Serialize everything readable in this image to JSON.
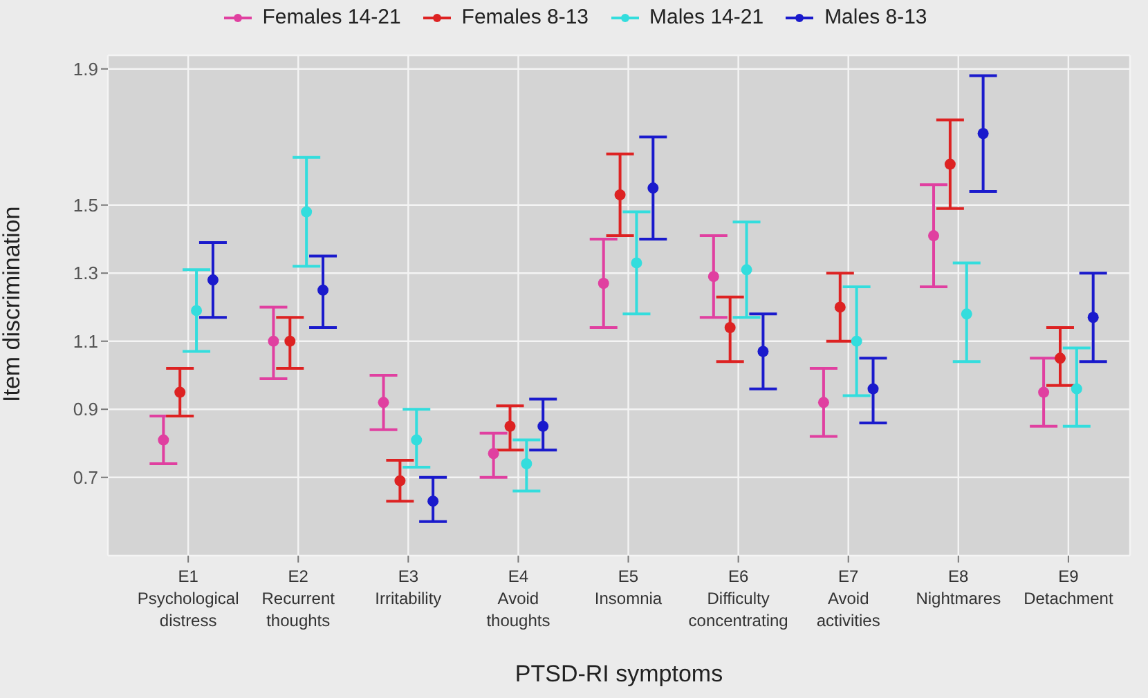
{
  "chart_data": {
    "type": "scatter",
    "xlabel": "PTSD-RI symptoms",
    "ylabel": "Item discrimination",
    "categories": [
      "E1 Psychological distress",
      "E2 Recurrent thoughts",
      "E3 Irritability",
      "E4 Avoid thoughts",
      "E5 Insomnia",
      "E6 Difficulty concentrating",
      "E7 Avoid activities",
      "E8 Nightmares",
      "E9 Detachment"
    ],
    "series": [
      {
        "name": "Females 14-21",
        "color": "#e040a0",
        "values": [
          0.81,
          1.1,
          0.92,
          0.77,
          1.27,
          1.29,
          0.92,
          1.41,
          0.95
        ],
        "errors": [
          [
            0.74,
            0.88
          ],
          [
            0.99,
            1.2
          ],
          [
            0.84,
            1.0
          ],
          [
            0.7,
            0.83
          ],
          [
            1.14,
            1.4
          ],
          [
            1.17,
            1.41
          ],
          [
            0.82,
            1.02
          ],
          [
            1.26,
            1.56
          ],
          [
            0.85,
            1.05
          ]
        ]
      },
      {
        "name": "Females 8-13",
        "color": "#dd2222",
        "values": [
          0.95,
          1.1,
          0.69,
          0.85,
          1.53,
          1.14,
          1.2,
          1.62,
          1.05
        ],
        "errors": [
          [
            0.88,
            1.02
          ],
          [
            1.02,
            1.17
          ],
          [
            0.63,
            0.75
          ],
          [
            0.78,
            0.91
          ],
          [
            1.41,
            1.65
          ],
          [
            1.04,
            1.23
          ],
          [
            1.1,
            1.3
          ],
          [
            1.49,
            1.75
          ],
          [
            0.97,
            1.14
          ]
        ]
      },
      {
        "name": "Males 14-21",
        "color": "#33dddd",
        "values": [
          1.19,
          1.48,
          0.81,
          0.74,
          1.33,
          1.31,
          1.1,
          1.18,
          0.96
        ],
        "errors": [
          [
            1.07,
            1.31
          ],
          [
            1.32,
            1.64
          ],
          [
            0.73,
            0.9
          ],
          [
            0.66,
            0.81
          ],
          [
            1.18,
            1.48
          ],
          [
            1.17,
            1.45
          ],
          [
            0.94,
            1.26
          ],
          [
            1.04,
            1.33
          ],
          [
            0.85,
            1.08
          ]
        ]
      },
      {
        "name": "Males 8-13",
        "color": "#1a1acc",
        "values": [
          1.28,
          1.25,
          0.63,
          0.85,
          1.55,
          1.07,
          0.96,
          1.71,
          1.17
        ],
        "errors": [
          [
            1.17,
            1.39
          ],
          [
            1.14,
            1.35
          ],
          [
            0.57,
            0.7
          ],
          [
            0.78,
            0.93
          ],
          [
            1.4,
            1.7
          ],
          [
            0.96,
            1.18
          ],
          [
            0.86,
            1.05
          ],
          [
            1.54,
            1.88
          ],
          [
            1.04,
            1.3
          ]
        ]
      }
    ],
    "ylim": [
      0.47,
      1.94
    ],
    "yticks": [
      0.7,
      0.9,
      1.1,
      1.3,
      1.5,
      1.9
    ],
    "grid": true,
    "legend": "top",
    "marker": "circle"
  }
}
